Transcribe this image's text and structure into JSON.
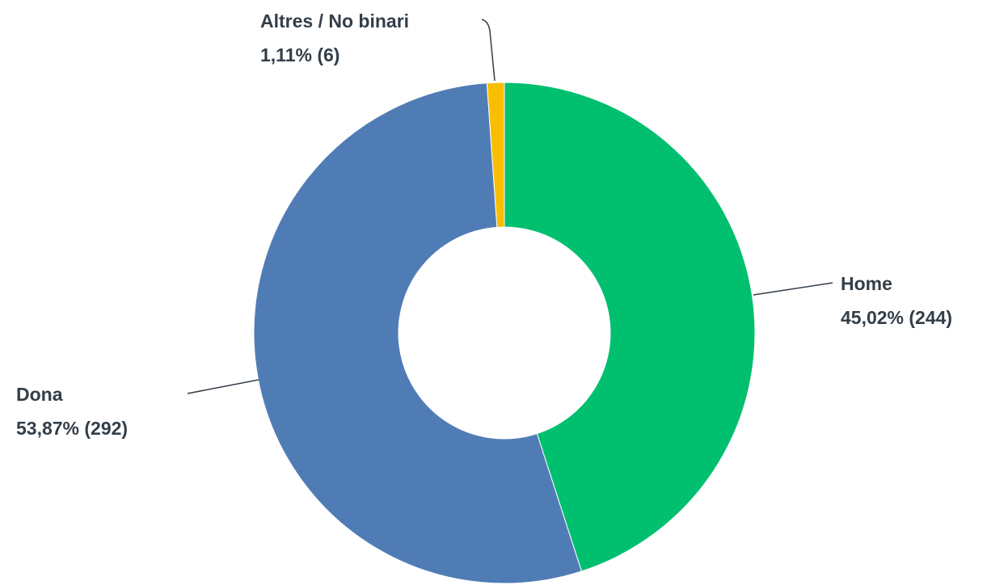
{
  "chart_data": {
    "type": "donut",
    "categories": [
      "Home",
      "Dona",
      "Altres / No binari"
    ],
    "values": [
      45.02,
      53.87,
      1.11
    ],
    "value_labels": [
      "45,02% (244)",
      "53,87% (292)",
      "1,11% (6)"
    ],
    "colors": [
      "#00bf6f",
      "#507cb6",
      "#f9be00"
    ]
  }
}
